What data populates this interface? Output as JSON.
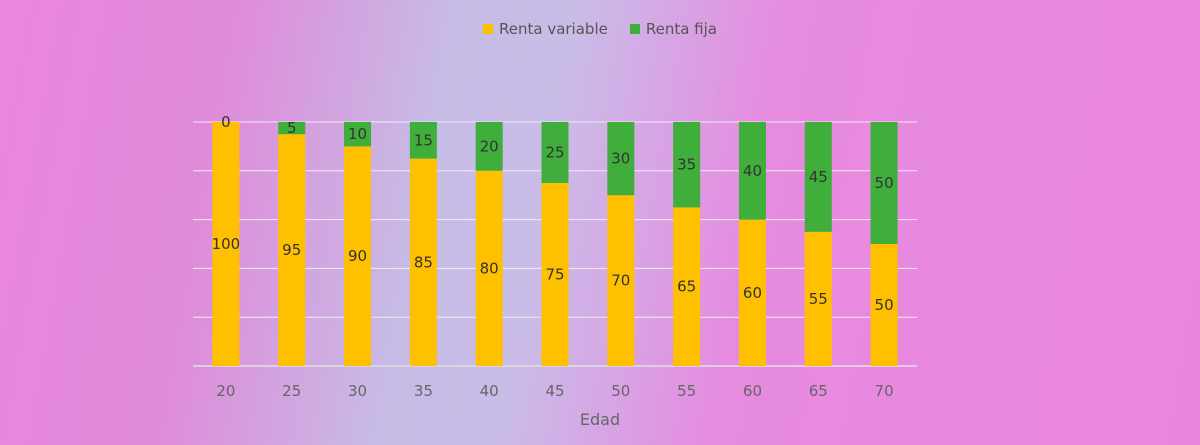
{
  "chart_data": {
    "type": "bar",
    "stacked": true,
    "categories": [
      "20",
      "25",
      "30",
      "35",
      "40",
      "45",
      "50",
      "55",
      "60",
      "65",
      "70"
    ],
    "series": [
      {
        "name": "Renta variable",
        "color": "#ffc000",
        "values": [
          100,
          95,
          90,
          85,
          80,
          75,
          70,
          65,
          60,
          55,
          50
        ]
      },
      {
        "name": "Renta fija",
        "color": "#3fae3a",
        "values": [
          0,
          5,
          10,
          15,
          20,
          25,
          30,
          35,
          40,
          45,
          50
        ]
      }
    ],
    "title": "",
    "xlabel": "Edad",
    "ylabel": "",
    "ylim": [
      0,
      100
    ],
    "grid": true,
    "legend_position": "top"
  }
}
